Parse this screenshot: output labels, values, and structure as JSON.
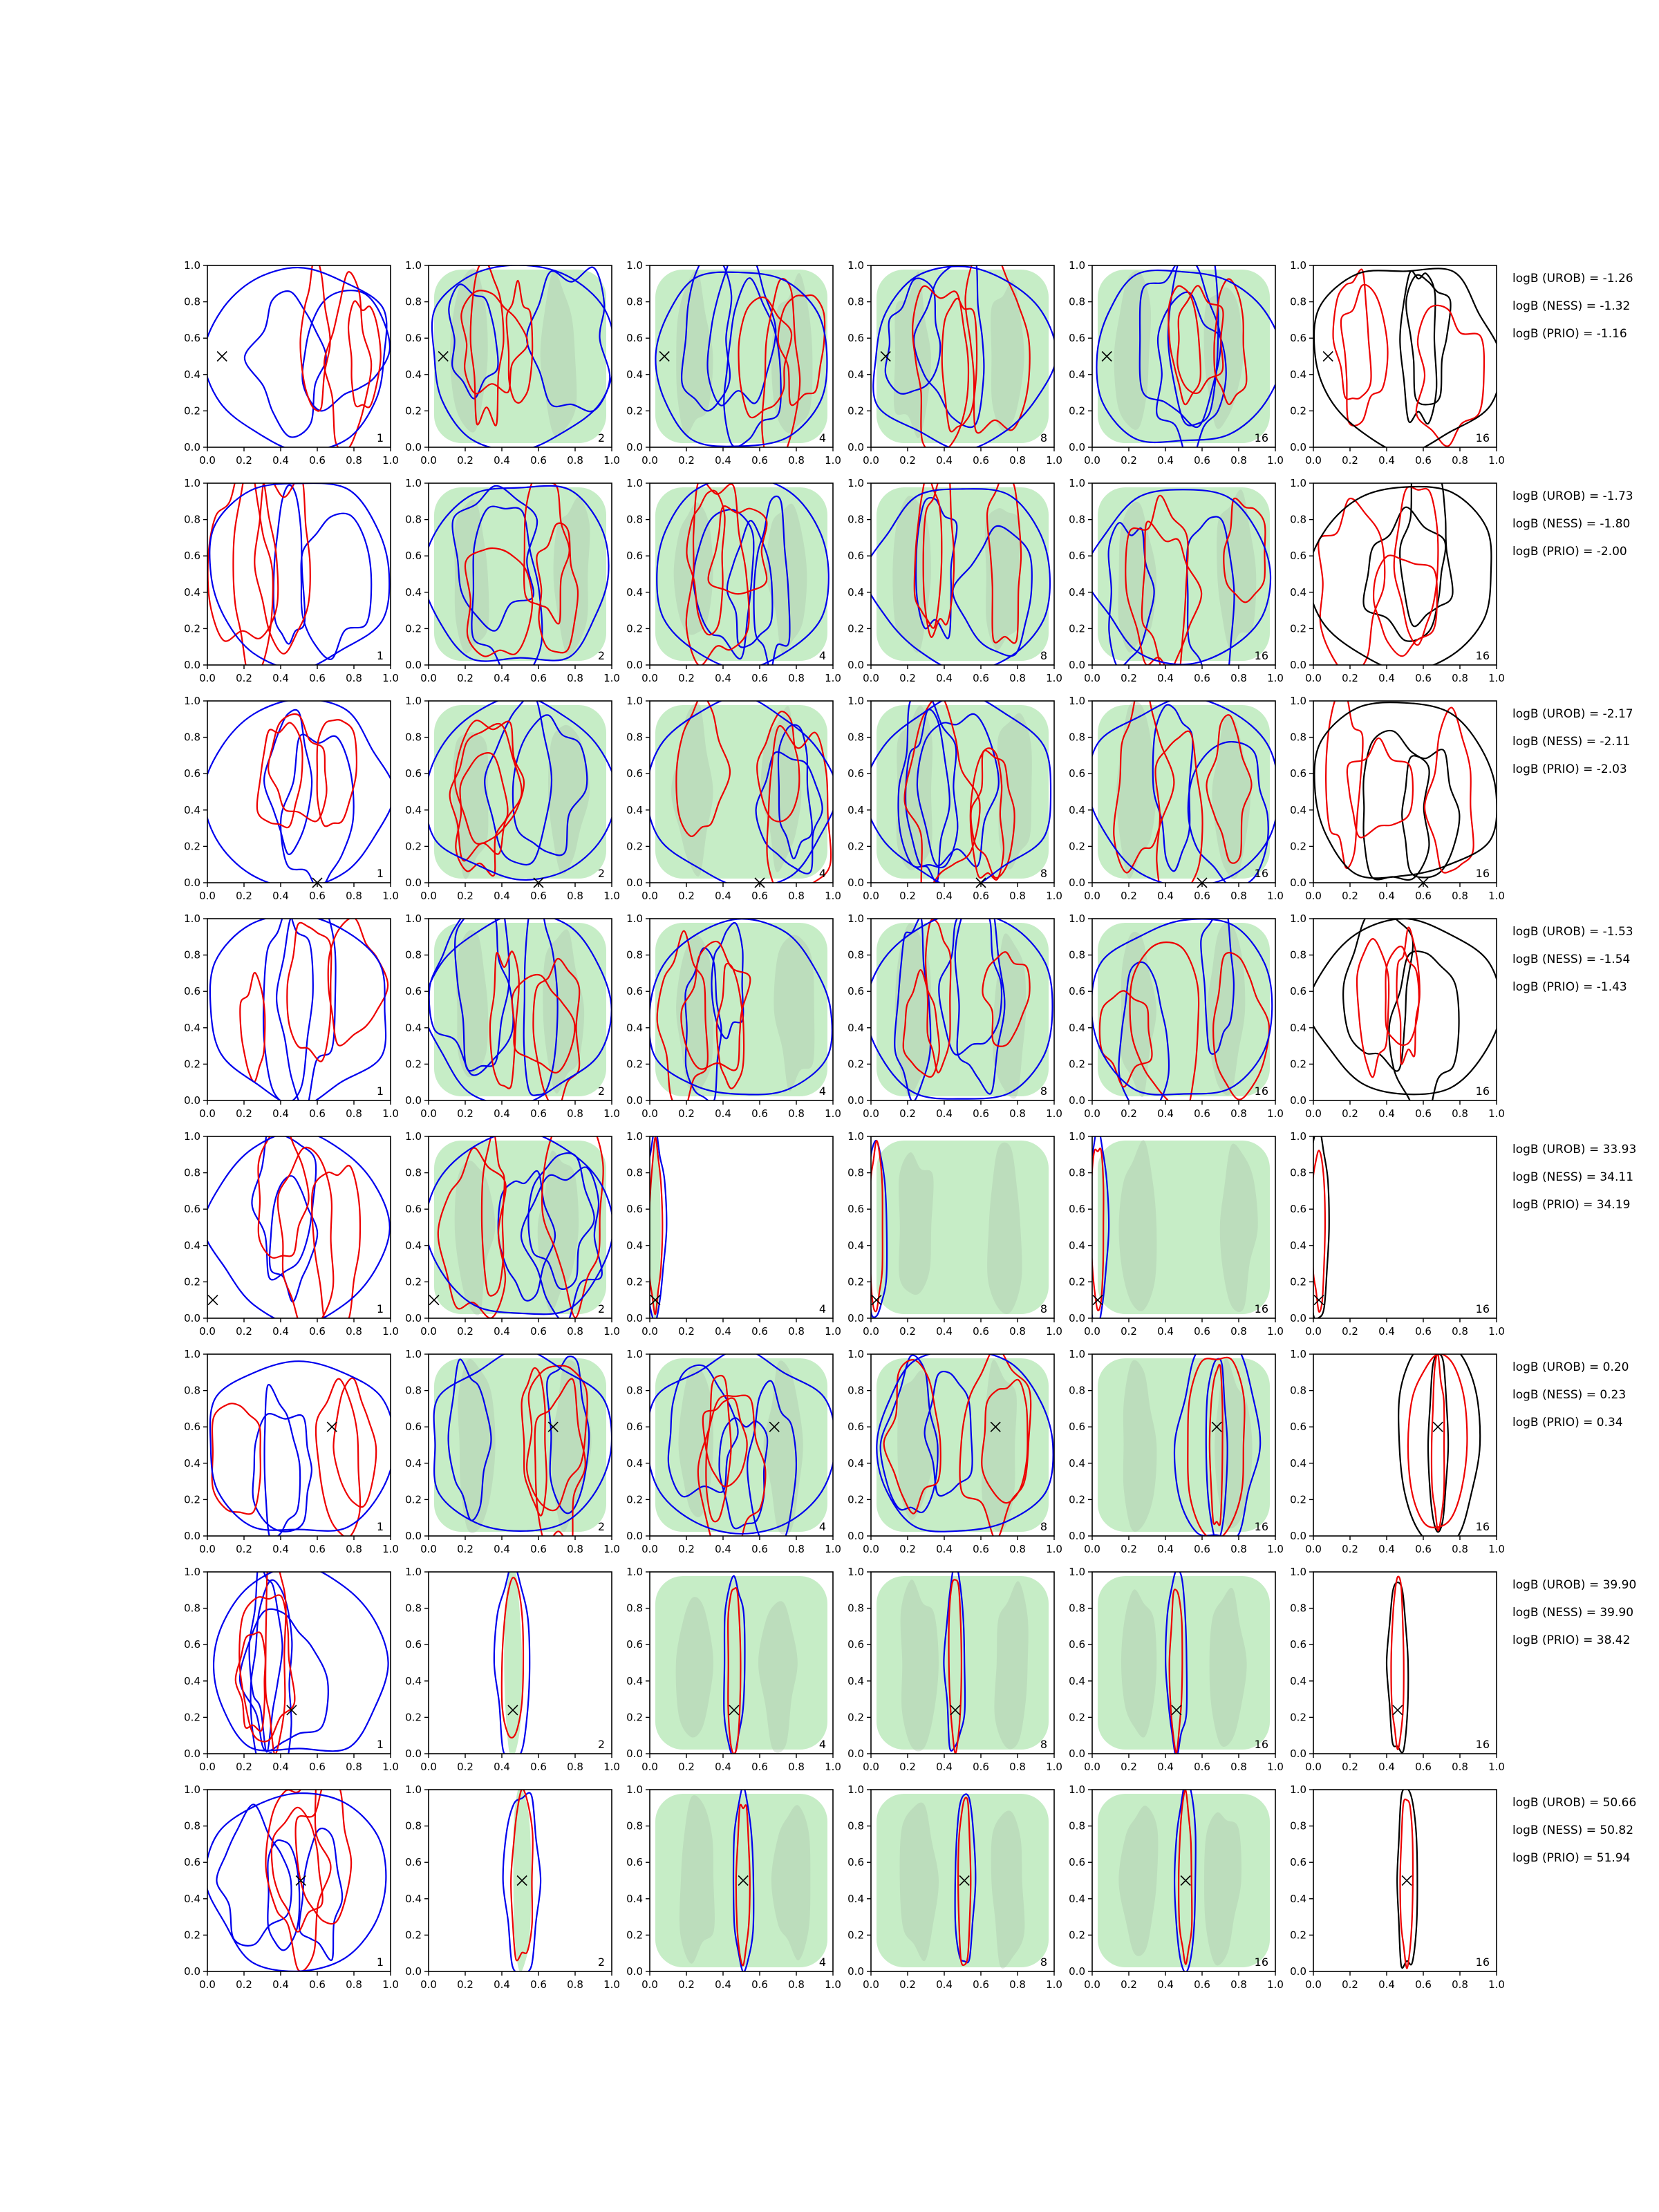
{
  "figure": {
    "colors": {
      "unrob": "#0000ee",
      "ness": "#ee0000",
      "prio": "#000000",
      "shade_light": "#c6edc6",
      "shade_dark": "#a8bfa8",
      "axes": "#000000",
      "background": "#ffffff"
    },
    "grid": "off",
    "legend": "none"
  },
  "chart_data": {
    "type": "contour-grid",
    "xlim": [
      0.0,
      1.0
    ],
    "ylim": [
      0.0,
      1.0
    ],
    "x_ticks": [
      "0.0",
      "0.2",
      "0.4",
      "0.6",
      "0.8",
      "1.0"
    ],
    "y_ticks": [
      "0.0",
      "0.2",
      "0.4",
      "0.6",
      "0.8",
      "1.0"
    ],
    "column_labels": [
      "1",
      "2",
      "4",
      "8",
      "16",
      "16"
    ],
    "marker_symbol": "x",
    "rows": [
      {
        "marker": {
          "x": 0.08,
          "y": 0.5
        },
        "focus": "diffuse",
        "logB": [
          "logB (UROB) = -1.26",
          "logB (NESS) = -1.32",
          "logB (PRIO) = -1.16"
        ]
      },
      {
        "marker": null,
        "focus": "diffuse",
        "logB": [
          "logB (UROB) = -1.73",
          "logB (NESS) = -1.80",
          "logB (PRIO) = -2.00"
        ]
      },
      {
        "marker": {
          "x": 0.6,
          "y": -0.01
        },
        "focus": "diffuse",
        "logB": [
          "logB (UROB) = -2.17",
          "logB (NESS) = -2.11",
          "logB (PRIO) = -2.03"
        ]
      },
      {
        "marker": null,
        "focus": "diffuse",
        "logB": [
          "logB (UROB) = -1.53",
          "logB (NESS) = -1.54",
          "logB (PRIO) = -1.43"
        ]
      },
      {
        "marker": {
          "x": 0.03,
          "y": 0.1
        },
        "focus": "edge",
        "logB": [
          "logB (UROB) = 33.93",
          "logB (NESS) = 34.11",
          "logB (PRIO) = 34.19"
        ]
      },
      {
        "marker": {
          "x": 0.68,
          "y": 0.6
        },
        "focus": "medium",
        "logB": [
          "logB (UROB) = 0.20",
          "logB (NESS) = 0.23",
          "logB (PRIO) = 0.34"
        ]
      },
      {
        "marker": {
          "x": 0.46,
          "y": 0.24
        },
        "focus": "narrow",
        "logB": [
          "logB (UROB) = 39.90",
          "logB (NESS) = 39.90",
          "logB (PRIO) = 38.42"
        ]
      },
      {
        "marker": {
          "x": 0.51,
          "y": 0.5
        },
        "focus": "narrow",
        "logB": [
          "logB (UROB) = 50.66",
          "logB (NESS) = 50.82",
          "logB (PRIO) = 51.94"
        ]
      }
    ]
  }
}
